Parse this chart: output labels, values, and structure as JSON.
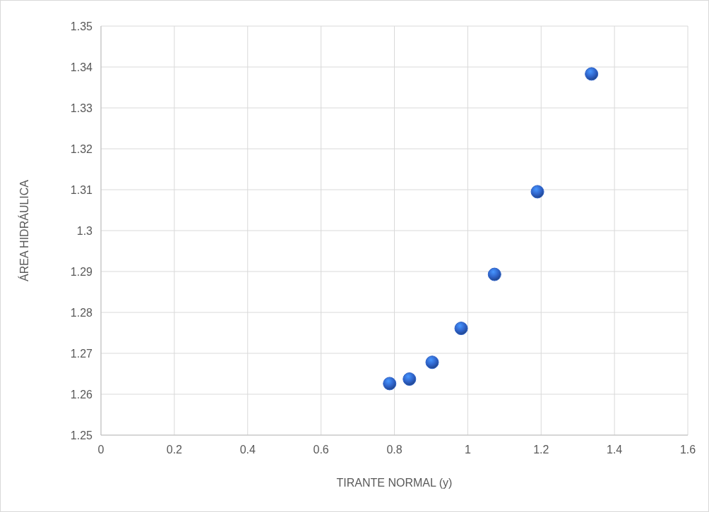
{
  "chart_data": {
    "type": "scatter",
    "xlabel": "TIRANTE NORMAL (y)",
    "ylabel": "ÁREA HIDRÁULICA",
    "x": [
      0.787,
      0.841,
      0.903,
      0.982,
      1.073,
      1.19,
      1.3375
    ],
    "series": [
      {
        "color": "#2e62c8",
        "values": [
          1.2626,
          1.2637,
          1.2678,
          1.2761,
          1.2893,
          1.3095,
          1.3383
        ]
      }
    ],
    "xlim": [
      0,
      1.6
    ],
    "xticks": [
      0,
      0.2,
      0.4,
      0.6,
      0.8,
      1,
      1.2,
      1.4,
      1.6
    ],
    "ylim": [
      1.25,
      1.35
    ],
    "yticks": [
      1.25,
      1.26,
      1.27,
      1.28,
      1.29,
      1.3,
      1.31,
      1.32,
      1.33,
      1.34,
      1.35
    ],
    "grid": true,
    "marker": "circle"
  }
}
